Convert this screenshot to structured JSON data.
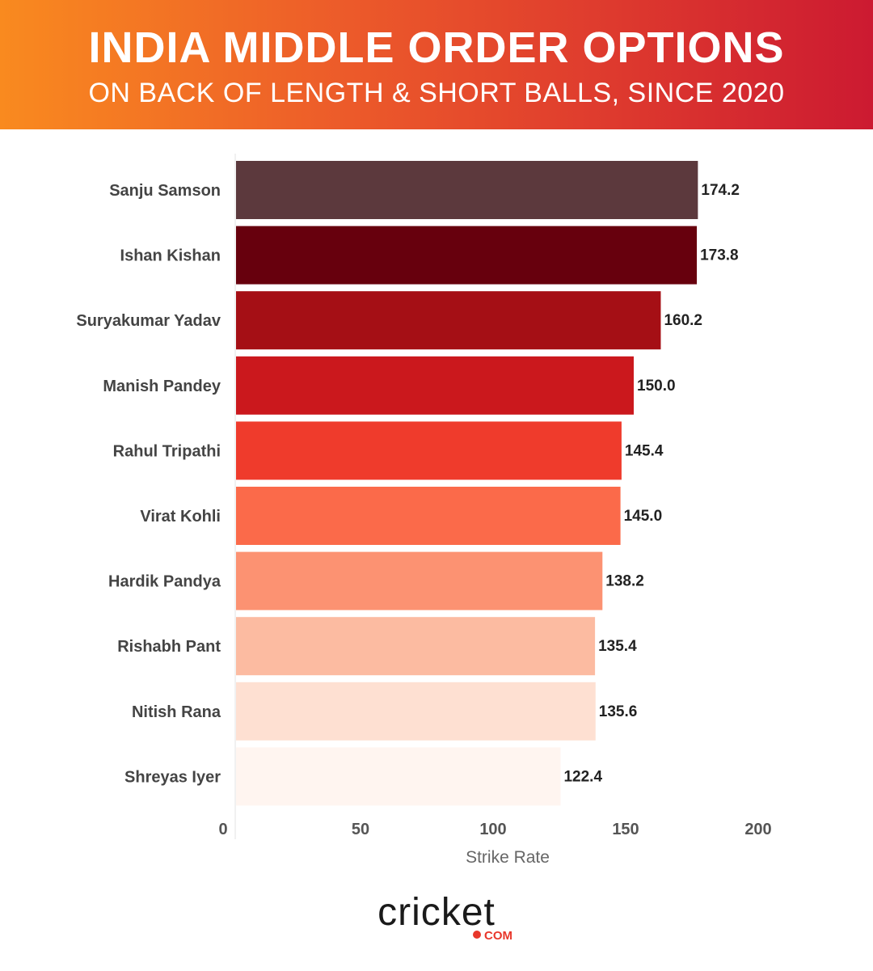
{
  "header": {
    "title": "INDIA MIDDLE ORDER OPTIONS",
    "subtitle": "ON BACK OF LENGTH & SHORT BALLS, SINCE 2020"
  },
  "chart_data": {
    "type": "bar",
    "orientation": "horizontal",
    "categories": [
      "Sanju Samson",
      "Ishan Kishan",
      "Suryakumar Yadav",
      "Manish Pandey",
      "Rahul Tripathi",
      "Virat Kohli",
      "Hardik Pandya",
      "Rishabh Pant",
      "Nitish Rana",
      "Shreyas Iyer"
    ],
    "values": [
      174.2,
      173.8,
      160.2,
      150.0,
      145.4,
      145.0,
      138.2,
      135.4,
      135.6,
      122.4
    ],
    "value_labels": [
      "174.2",
      "173.8",
      "160.2",
      "150.0",
      "145.4",
      "145.0",
      "138.2",
      "135.4",
      "135.6",
      "122.4"
    ],
    "colors": [
      "#5c393d",
      "#67000d",
      "#a50f15",
      "#cb181d",
      "#ef3b2c",
      "#fb6a4a",
      "#fc9272",
      "#fcbba1",
      "#fee0d2",
      "#fff5f0"
    ],
    "xlabel": "Strike Rate",
    "ylabel": "",
    "xlim": [
      0,
      200
    ],
    "xticks": [
      "0",
      "50",
      "100",
      "150",
      "200"
    ],
    "grid": false
  },
  "logo": {
    "text_main": "cricket",
    "text_sub": "COM",
    "accent_color": "#e8372b"
  }
}
